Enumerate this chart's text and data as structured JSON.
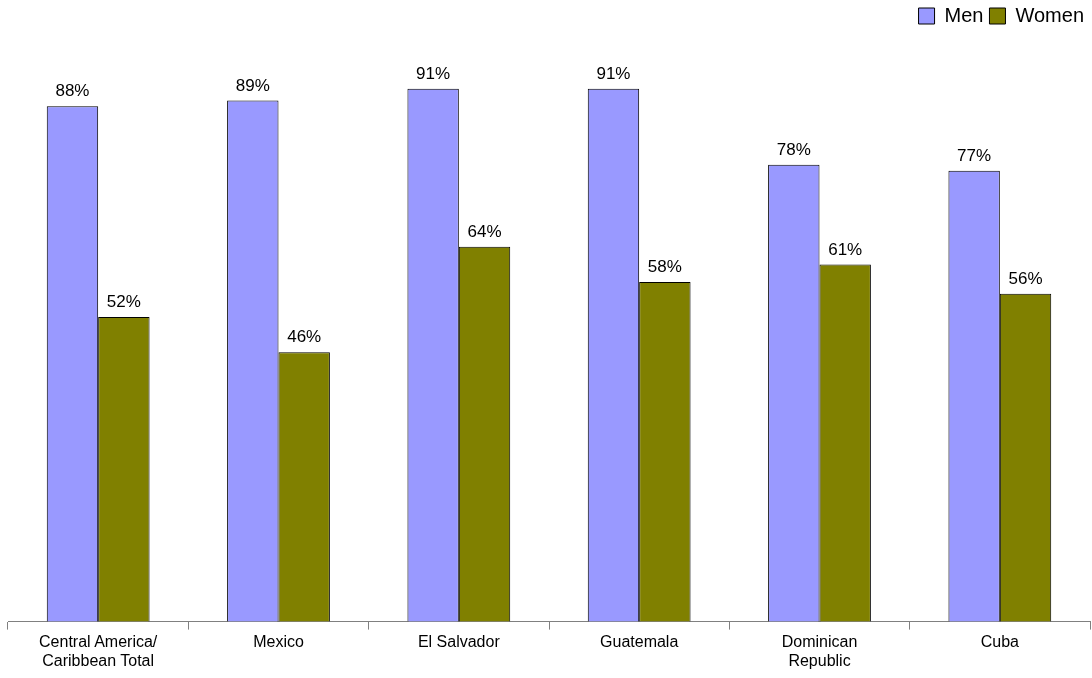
{
  "chart_data": {
    "type": "bar",
    "categories": [
      "Central America/ Caribbean Total",
      "Mexico",
      "El Salvador",
      "Guatemala",
      "Dominican Republic",
      "Cuba"
    ],
    "series": [
      {
        "name": "Men",
        "color": "#9999ff",
        "values": [
          88,
          89,
          91,
          91,
          78,
          77
        ],
        "value_labels": [
          "88%",
          "89%",
          "91%",
          "91%",
          "78%",
          "77%"
        ]
      },
      {
        "name": "Women",
        "color": "#808000",
        "values": [
          52,
          46,
          64,
          58,
          61,
          56
        ],
        "value_labels": [
          "52%",
          "46%",
          "64%",
          "58%",
          "61%",
          "56%"
        ]
      }
    ],
    "legend": "top right",
    "grid": false
  }
}
